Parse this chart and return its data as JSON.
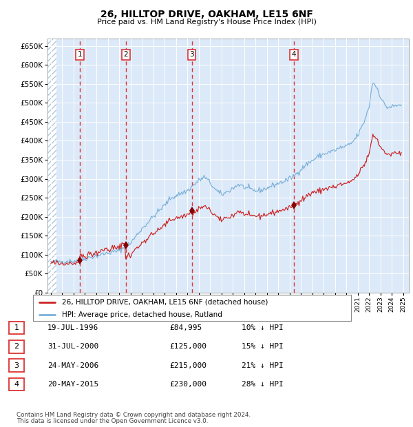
{
  "title": "26, HILLTOP DRIVE, OAKHAM, LE15 6NF",
  "subtitle": "Price paid vs. HM Land Registry's House Price Index (HPI)",
  "footer1": "Contains HM Land Registry data © Crown copyright and database right 2024.",
  "footer2": "This data is licensed under the Open Government Licence v3.0.",
  "legend_red": "26, HILLTOP DRIVE, OAKHAM, LE15 6NF (detached house)",
  "legend_blue": "HPI: Average price, detached house, Rutland",
  "sales": [
    {
      "num": 1,
      "date": "19-JUL-1996",
      "price": 84995,
      "price_str": "£84,995",
      "pct": "10%",
      "year": 1996.55
    },
    {
      "num": 2,
      "date": "31-JUL-2000",
      "price": 125000,
      "price_str": "£125,000",
      "pct": "15%",
      "year": 2000.58
    },
    {
      "num": 3,
      "date": "24-MAY-2006",
      "price": 215000,
      "price_str": "£215,000",
      "pct": "21%",
      "year": 2006.39
    },
    {
      "num": 4,
      "date": "20-MAY-2015",
      "price": 230000,
      "price_str": "£230,000",
      "pct": "28%",
      "year": 2015.38
    }
  ],
  "ylim": [
    0,
    670000
  ],
  "xlim_start": 1993.7,
  "xlim_end": 2025.5,
  "plot_bg": "#dce9f8",
  "hpi_color": "#7ab0d8",
  "price_color": "#cc2222",
  "grid_color": "#ffffff",
  "vline_color": "#dd3333",
  "hatch_color": "#c8d8e8",
  "marker_color": "#880000"
}
